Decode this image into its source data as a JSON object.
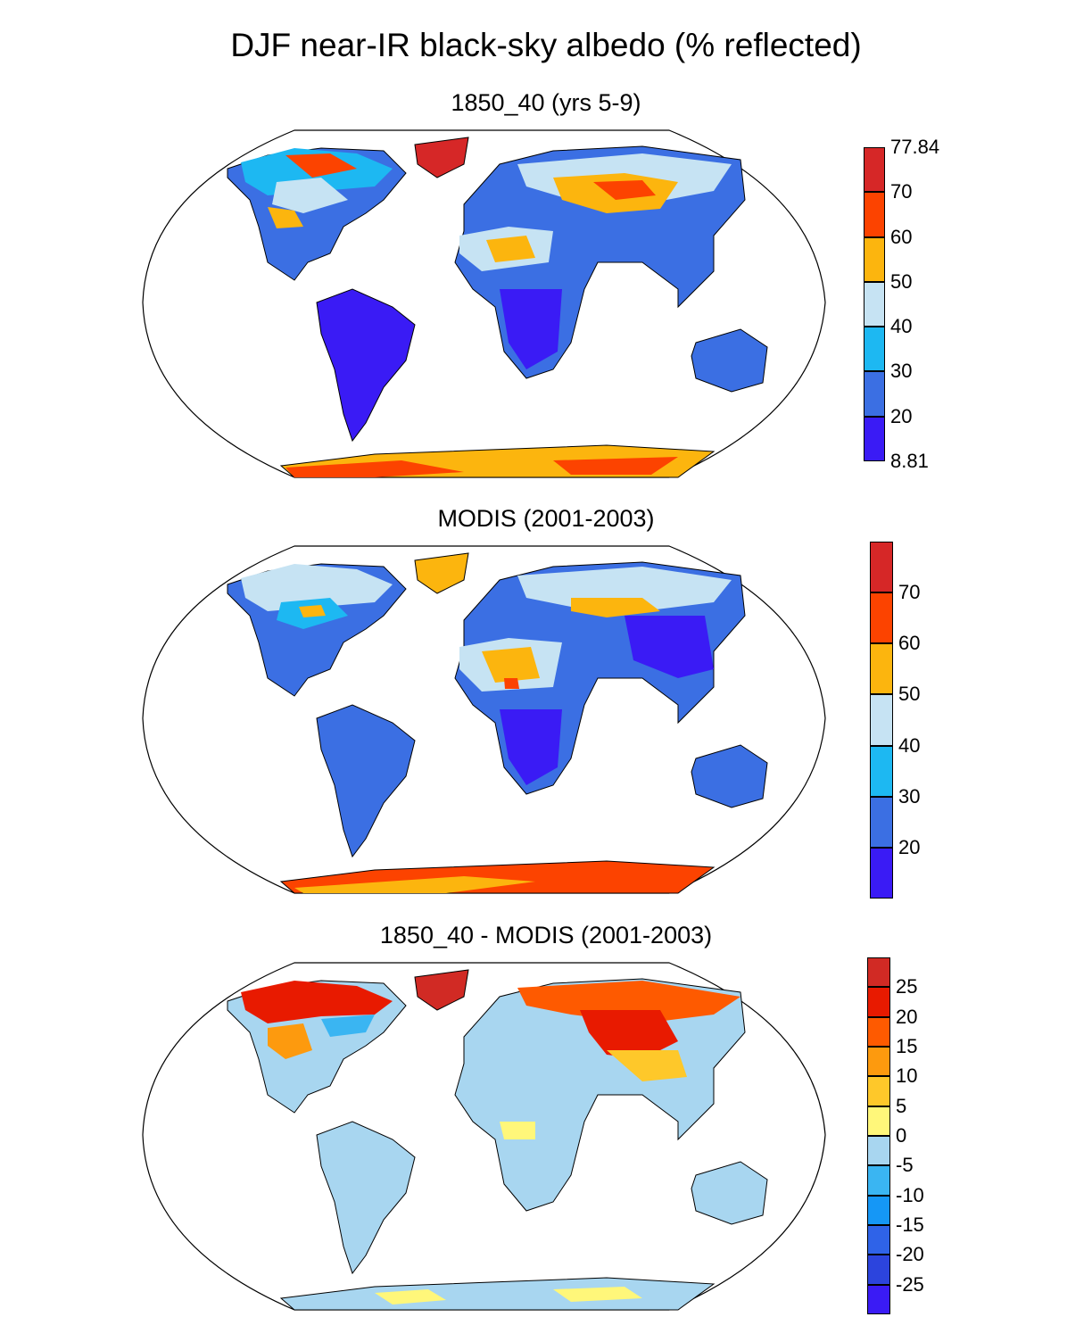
{
  "title": "DJF near-IR black-sky albedo (% reflected)",
  "panels": [
    {
      "title": "1850_40 (yrs 5-9)",
      "colorbar": {
        "colors": [
          "#3a1bf5",
          "#3b6fe3",
          "#1db8f2",
          "#c6e3f3",
          "#fcb50e",
          "#fc4300",
          "#d62727"
        ],
        "labels": [
          "8.81",
          "20",
          "30",
          "40",
          "50",
          "60",
          "70",
          "77.84"
        ]
      }
    },
    {
      "title": "MODIS (2001-2003)",
      "colorbar": {
        "colors": [
          "#3a1bf5",
          "#3b6fe3",
          "#1db8f2",
          "#c6e3f3",
          "#fcb50e",
          "#fc4300",
          "#d62727"
        ],
        "labels": [
          "20",
          "30",
          "40",
          "50",
          "60",
          "70"
        ]
      }
    },
    {
      "title": "1850_40 - MODIS (2001-2003)",
      "colorbar": {
        "colors": [
          "#3a1bf5",
          "#2c44dd",
          "#2f63e8",
          "#1597f6",
          "#3ab5f2",
          "#a8d6f0",
          "#fff77a",
          "#fec82a",
          "#fd9a0e",
          "#fe5a00",
          "#e81a00",
          "#d12a24"
        ],
        "labels": [
          "-25",
          "-20",
          "-15",
          "-10",
          "-5",
          "0",
          "5",
          "10",
          "15",
          "20",
          "25"
        ]
      }
    }
  ]
}
